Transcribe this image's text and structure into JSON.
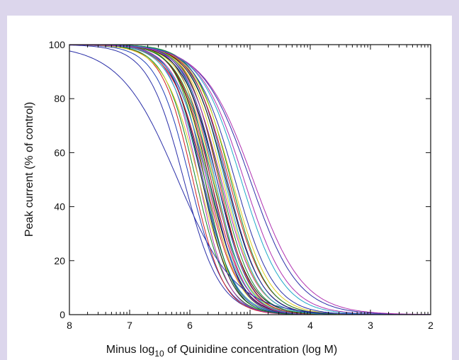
{
  "chart_data": {
    "type": "line",
    "title": "",
    "xlabel_prefix": "Minus log",
    "xlabel_subscript": "10",
    "xlabel_suffix": " of Quinidine concentration (log M)",
    "ylabel": "Peak current (% of control)",
    "xlim": [
      8,
      2
    ],
    "ylim": [
      0,
      100
    ],
    "x_ticks": [
      8,
      7,
      6,
      5,
      4,
      3,
      2
    ],
    "y_ticks": [
      0,
      20,
      40,
      60,
      80,
      100
    ],
    "x_minor_ticks": "log-decade (9 per decade)",
    "grid": false,
    "legend": "none",
    "curve_model": "Hill: y = 100 / (1 + 10^(n*(pIC50 - x)))",
    "series": [
      {
        "color": "#2a2fa8",
        "pIC50": 6.1,
        "hill": 1.45
      },
      {
        "color": "#1f3fb8",
        "pIC50": 6.0,
        "hill": 1.55
      },
      {
        "color": "#d02020",
        "pIC50": 5.95,
        "hill": 1.7
      },
      {
        "color": "#138a2a",
        "pIC50": 5.9,
        "hill": 1.65
      },
      {
        "color": "#b030b0",
        "pIC50": 5.85,
        "hill": 1.8
      },
      {
        "color": "#e0d020",
        "pIC50": 5.85,
        "hill": 1.5
      },
      {
        "color": "#20a8c8",
        "pIC50": 5.8,
        "hill": 1.6
      },
      {
        "color": "#111111",
        "pIC50": 5.8,
        "hill": 1.75
      },
      {
        "color": "#2a2fa8",
        "pIC50": 5.78,
        "hill": 1.7
      },
      {
        "color": "#d02020",
        "pIC50": 5.75,
        "hill": 1.55
      },
      {
        "color": "#138a2a",
        "pIC50": 5.75,
        "hill": 1.85
      },
      {
        "color": "#b030b0",
        "pIC50": 5.72,
        "hill": 1.6
      },
      {
        "color": "#e0d020",
        "pIC50": 5.7,
        "hill": 1.7
      },
      {
        "color": "#20a8c8",
        "pIC50": 5.7,
        "hill": 1.5
      },
      {
        "color": "#111111",
        "pIC50": 5.68,
        "hill": 1.65
      },
      {
        "color": "#2a2fa8",
        "pIC50": 5.65,
        "hill": 1.8
      },
      {
        "color": "#d02020",
        "pIC50": 5.65,
        "hill": 1.6
      },
      {
        "color": "#138a2a",
        "pIC50": 5.62,
        "hill": 1.55
      },
      {
        "color": "#b030b0",
        "pIC50": 5.6,
        "hill": 1.75
      },
      {
        "color": "#e0d020",
        "pIC50": 5.6,
        "hill": 1.6
      },
      {
        "color": "#20a8c8",
        "pIC50": 5.58,
        "hill": 1.7
      },
      {
        "color": "#111111",
        "pIC50": 5.55,
        "hill": 1.55
      },
      {
        "color": "#2a2fa8",
        "pIC50": 5.55,
        "hill": 1.65
      },
      {
        "color": "#d02020",
        "pIC50": 5.52,
        "hill": 1.7
      },
      {
        "color": "#138a2a",
        "pIC50": 5.5,
        "hill": 1.6
      },
      {
        "color": "#b030b0",
        "pIC50": 5.48,
        "hill": 1.5
      },
      {
        "color": "#e0d020",
        "pIC50": 5.45,
        "hill": 1.55
      },
      {
        "color": "#20a8c8",
        "pIC50": 5.42,
        "hill": 1.6
      },
      {
        "color": "#111111",
        "pIC50": 5.4,
        "hill": 1.5
      },
      {
        "color": "#2a2fa8",
        "pIC50": 5.38,
        "hill": 1.55
      },
      {
        "color": "#d02020",
        "pIC50": 5.35,
        "hill": 1.45
      },
      {
        "color": "#138a2a",
        "pIC50": 5.32,
        "hill": 1.5
      },
      {
        "color": "#e0d020",
        "pIC50": 5.3,
        "hill": 1.4
      },
      {
        "color": "#2a2fa8",
        "pIC50": 5.25,
        "hill": 1.35
      },
      {
        "color": "#b030b0",
        "pIC50": 5.1,
        "hill": 1.2
      },
      {
        "color": "#20a8c8",
        "pIC50": 5.15,
        "hill": 1.25
      },
      {
        "color": "#2a2fa8",
        "pIC50": 5.0,
        "hill": 1.1
      },
      {
        "color": "#b030b0",
        "pIC50": 4.95,
        "hill": 1.05
      },
      {
        "color": "#2a2fa8",
        "pIC50": 6.2,
        "hill": 0.9
      }
    ]
  }
}
